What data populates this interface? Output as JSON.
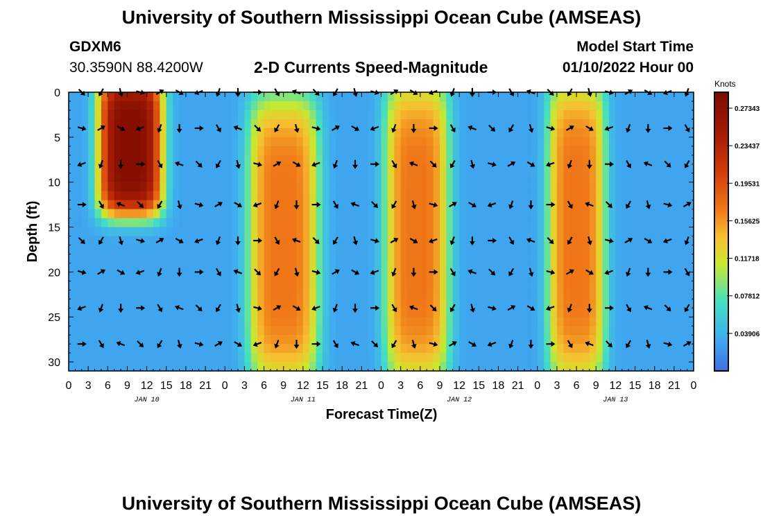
{
  "header": {
    "title": "University of Southern Mississippi Ocean Cube (AMSEAS)",
    "station": "GDXM6",
    "location": "30.3590N  88.4200W",
    "plot_title": "2-D Currents Speed-Magnitude",
    "model_start_label": "Model Start Time",
    "model_start_value": "01/10/2022 Hour 00"
  },
  "footer": {
    "title": "University of Southern Mississippi Ocean Cube (AMSEAS)"
  },
  "colors": {
    "low": "#3f6fe0",
    "mid": "#c8e830",
    "high": "#7a0b00",
    "arrow": "#000000"
  },
  "chart_data": {
    "type": "heatmap",
    "title": "2-D Currents Speed-Magnitude",
    "xlabel": "Forecast Time(Z)",
    "ylabel": "Depth (ft)",
    "xlim": [
      0,
      96
    ],
    "ylim": [
      0,
      31
    ],
    "x_tick_labels": [
      "0",
      "3",
      "6",
      "9",
      "12",
      "15",
      "18",
      "21",
      "0",
      "3",
      "6",
      "9",
      "12",
      "15",
      "18",
      "21",
      "0",
      "3",
      "6",
      "9",
      "12",
      "15",
      "18",
      "21",
      "0",
      "3",
      "6",
      "9",
      "12",
      "15",
      "18",
      "21",
      "0"
    ],
    "y_ticks": [
      0,
      5,
      10,
      15,
      20,
      25,
      30
    ],
    "day_labels": [
      {
        "label": "JAN 10",
        "hour": 12
      },
      {
        "label": "JAN 11",
        "hour": 36
      },
      {
        "label": "JAN 12",
        "hour": 60
      },
      {
        "label": "JAN 13",
        "hour": 84
      }
    ],
    "colorbar": {
      "unit": "Knots",
      "min": 0.0,
      "max": 0.29,
      "ticks": [
        "0.27343",
        "0.23437",
        "0.19531",
        "0.15625",
        "0.11718",
        "0.07812",
        "0.03906"
      ]
    },
    "speed_surface": {
      "background_knots": 0.03,
      "high_speed_bands": [
        {
          "hours": [
            6,
            13
          ],
          "depth": [
            0,
            12
          ],
          "peak_knots": 0.28
        },
        {
          "hours": [
            29,
            37
          ],
          "depth": [
            2,
            31
          ],
          "peak_knots": 0.17
        },
        {
          "hours": [
            50,
            57
          ],
          "depth": [
            0,
            31
          ],
          "peak_knots": 0.17
        },
        {
          "hours": [
            75,
            81
          ],
          "depth": [
            0,
            31
          ],
          "peak_knots": 0.17
        }
      ]
    },
    "vector_hours": [
      2,
      5,
      8,
      11,
      14,
      17,
      20,
      23,
      26,
      29,
      32,
      35,
      38,
      41,
      44,
      47,
      50,
      53,
      56,
      59,
      62,
      65,
      68,
      71,
      74,
      77,
      80,
      83,
      86,
      89,
      92,
      95
    ],
    "vector_depths": [
      0,
      4,
      8,
      12.5,
      16.5,
      20,
      24,
      28
    ]
  }
}
